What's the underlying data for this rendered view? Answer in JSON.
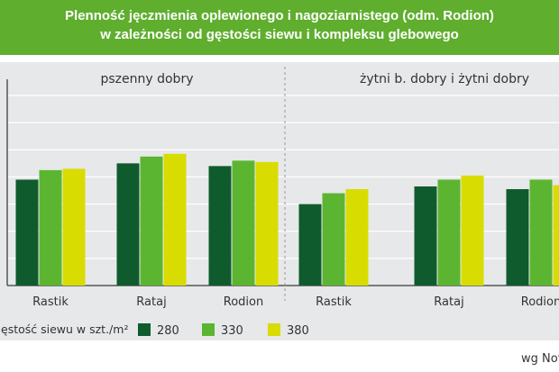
{
  "header": {
    "title_line1": "Plenność jęczmienia oplewionego i nagoziarnistego (odm. Rodion)",
    "title_line2": "w zależności od gęstości siewu i kompleksu glebowego"
  },
  "source": "wg Nov",
  "colors": {
    "header_bg": "#5fae2e",
    "panel_bg": "#e7e8e9",
    "s280": "#0f5b2e",
    "s330": "#5cb531",
    "s380": "#d8dc00"
  },
  "chart_data": {
    "type": "bar",
    "legend_title": "ęstość siewu w szt./m²",
    "legend_position": "bottom",
    "series_names": [
      "280",
      "330",
      "380"
    ],
    "y_grid": true,
    "ylim": [
      0,
      7
    ],
    "groups": [
      {
        "label": "pszenny dobry",
        "categories": [
          "Rastik",
          "Rataj",
          "Rodion"
        ],
        "series": [
          {
            "name": "280",
            "values": [
              3.9,
              4.5,
              4.4
            ]
          },
          {
            "name": "330",
            "values": [
              4.25,
              4.75,
              4.6
            ]
          },
          {
            "name": "380",
            "values": [
              4.3,
              4.85,
              4.55
            ]
          }
        ]
      },
      {
        "label": "żytni b. dobry i żytni dobry",
        "categories": [
          "Rastik",
          "Rataj",
          "Rodion"
        ],
        "series": [
          {
            "name": "280",
            "values": [
              3.0,
              3.65,
              3.55
            ]
          },
          {
            "name": "330",
            "values": [
              3.4,
              3.9,
              3.9
            ]
          },
          {
            "name": "380",
            "values": [
              3.55,
              4.05,
              3.7
            ]
          }
        ]
      }
    ]
  }
}
